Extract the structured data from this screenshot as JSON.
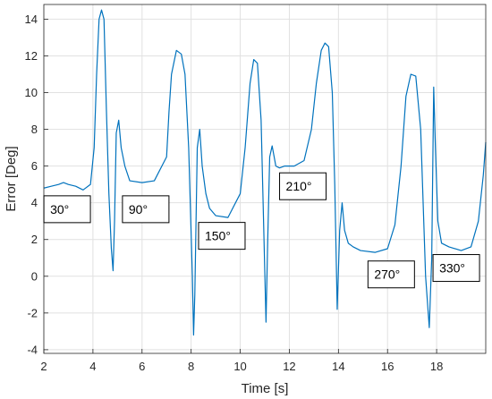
{
  "chart_data": {
    "type": "line",
    "title": "",
    "xlabel": "Time [s]",
    "ylabel": "Error [Deg]",
    "xlim": [
      2,
      20
    ],
    "ylim": [
      -4.2,
      14.8
    ],
    "grid": true,
    "x_ticks": [
      2,
      4,
      6,
      8,
      10,
      12,
      14,
      16,
      18
    ],
    "y_ticks": [
      -4,
      -2,
      0,
      2,
      4,
      6,
      8,
      10,
      12,
      14
    ],
    "line_color": "#0072BD",
    "series": [
      {
        "x": [
          2.0,
          2.3,
          2.6,
          2.8,
          3.0,
          3.3,
          3.6,
          3.9,
          4.05,
          4.15,
          4.25,
          4.35,
          4.45,
          4.55,
          4.65,
          4.75,
          4.82,
          4.88,
          4.95,
          5.05,
          5.15,
          5.3,
          5.5,
          6.0,
          6.5,
          7.0,
          7.1,
          7.2,
          7.4,
          7.6,
          7.75,
          7.9,
          8.05,
          8.1,
          8.15,
          8.25,
          8.35,
          8.45,
          8.6,
          8.75,
          9.0,
          9.5,
          10.0,
          10.2,
          10.4,
          10.55,
          10.7,
          10.85,
          10.95,
          11.05,
          11.12,
          11.2,
          11.3,
          11.45,
          11.6,
          11.8,
          12.2,
          12.6,
          12.9,
          13.1,
          13.3,
          13.45,
          13.6,
          13.75,
          13.85,
          13.95,
          14.05,
          14.15,
          14.25,
          14.4,
          14.6,
          14.9,
          15.5,
          16.0,
          16.3,
          16.55,
          16.75,
          16.95,
          17.15,
          17.35,
          17.55,
          17.7,
          17.8,
          17.88,
          17.95,
          18.05,
          18.2,
          18.5,
          19.0,
          19.4,
          19.7,
          19.9,
          20.0
        ],
        "y": [
          4.8,
          4.9,
          5.0,
          5.1,
          5.0,
          4.9,
          4.7,
          5.0,
          7.0,
          11.0,
          14.0,
          14.5,
          14.0,
          9.0,
          4.5,
          1.5,
          0.3,
          3.0,
          7.8,
          8.5,
          7.0,
          6.0,
          5.2,
          5.1,
          5.2,
          6.5,
          9.0,
          11.0,
          12.3,
          12.1,
          11.0,
          7.0,
          0.0,
          -3.2,
          -1.0,
          7.0,
          8.0,
          6.0,
          4.5,
          3.7,
          3.3,
          3.2,
          4.5,
          7.0,
          10.5,
          11.8,
          11.6,
          8.5,
          3.0,
          -2.5,
          2.0,
          6.5,
          7.1,
          6.0,
          5.9,
          6.0,
          6.0,
          6.3,
          8.0,
          10.5,
          12.3,
          12.7,
          12.5,
          10.0,
          5.0,
          -1.8,
          2.5,
          4.0,
          2.5,
          1.8,
          1.6,
          1.4,
          1.3,
          1.5,
          2.8,
          6.0,
          9.8,
          11.0,
          10.9,
          8.0,
          0.0,
          -2.8,
          1.0,
          10.3,
          7.0,
          3.0,
          1.8,
          1.6,
          1.4,
          1.6,
          3.0,
          5.5,
          7.3
        ]
      }
    ],
    "annotations": [
      {
        "text": "30°",
        "x": 2.95,
        "y": 3.65
      },
      {
        "text": "90°",
        "x": 6.15,
        "y": 3.65
      },
      {
        "text": "150°",
        "x": 9.25,
        "y": 2.2
      },
      {
        "text": "210°",
        "x": 12.55,
        "y": 4.9
      },
      {
        "text": "270°",
        "x": 16.15,
        "y": 0.1
      },
      {
        "text": "330°",
        "x": 18.8,
        "y": 0.45
      }
    ]
  }
}
